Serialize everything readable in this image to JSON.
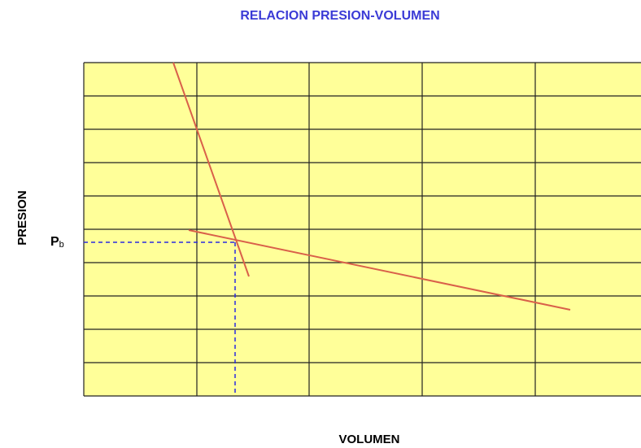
{
  "title": "RELACION PRESION-VOLUMEN",
  "y_axis_label": "PRESION",
  "x_axis_label": "VOLUMEN",
  "annotation": {
    "main": "P",
    "subscript": "b"
  }
}
